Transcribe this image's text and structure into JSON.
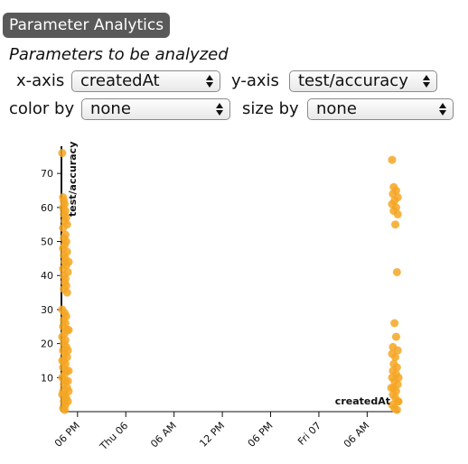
{
  "header": {
    "title": "Parameter Analytics"
  },
  "subtitle": "Parameters to be analyzed",
  "controls": {
    "xaxis_label": "x-axis",
    "xaxis_value": "createdAt",
    "yaxis_label": "y-axis",
    "yaxis_value": "test/accuracy",
    "colorby_label": "color by",
    "colorby_value": "none",
    "sizeby_label": "size by",
    "sizeby_value": "none"
  },
  "chart_data": {
    "type": "scatter",
    "color": "#f5a623",
    "ylabel": "test/accuracy",
    "xlabel": "createdAt",
    "ylim": [
      0,
      78
    ],
    "yticks": [
      10,
      20,
      30,
      40,
      50,
      60,
      70
    ],
    "xlim": [
      0,
      42
    ],
    "xticks": [
      {
        "x": 2,
        "label": "06 PM"
      },
      {
        "x": 8,
        "label": "Thu 06"
      },
      {
        "x": 14,
        "label": "06 AM"
      },
      {
        "x": 20,
        "label": "12 PM"
      },
      {
        "x": 26,
        "label": "06 PM"
      },
      {
        "x": 32,
        "label": "Fri 07"
      },
      {
        "x": 38,
        "label": "06 AM"
      }
    ],
    "series": [
      {
        "points": [
          [
            0.1,
            76
          ],
          [
            0.2,
            63
          ],
          [
            0.3,
            62
          ],
          [
            0.4,
            61
          ],
          [
            0.2,
            60
          ],
          [
            0.5,
            59
          ],
          [
            0.3,
            58
          ],
          [
            0.6,
            57
          ],
          [
            0.4,
            56
          ],
          [
            0.7,
            55
          ],
          [
            0.2,
            54
          ],
          [
            0.5,
            52
          ],
          [
            0.3,
            51
          ],
          [
            0.6,
            50
          ],
          [
            0.4,
            49
          ],
          [
            0.2,
            48
          ],
          [
            0.7,
            47
          ],
          [
            0.3,
            46
          ],
          [
            0.5,
            45
          ],
          [
            0.4,
            44
          ],
          [
            0.6,
            43
          ],
          [
            0.2,
            42
          ],
          [
            0.8,
            41
          ],
          [
            0.3,
            40
          ],
          [
            0.5,
            39
          ],
          [
            0.4,
            38
          ],
          [
            0.6,
            37
          ],
          [
            0.3,
            36
          ],
          [
            0.7,
            35
          ],
          [
            0.4,
            29
          ],
          [
            0.6,
            28
          ],
          [
            0.3,
            27
          ],
          [
            0.5,
            26
          ],
          [
            0.2,
            25
          ],
          [
            0.7,
            24
          ],
          [
            0.4,
            23
          ],
          [
            0.1,
            22
          ],
          [
            0.5,
            21
          ],
          [
            0.3,
            20
          ],
          [
            0.6,
            19
          ],
          [
            0.2,
            18
          ],
          [
            0.4,
            17
          ],
          [
            0.7,
            16
          ],
          [
            0.3,
            15
          ],
          [
            0.5,
            14
          ],
          [
            0.2,
            13
          ],
          [
            0.6,
            12
          ],
          [
            0.4,
            11
          ],
          [
            0.1,
            10
          ],
          [
            0.5,
            9
          ],
          [
            0.3,
            8
          ],
          [
            0.7,
            7
          ],
          [
            0.2,
            6
          ],
          [
            0.4,
            5
          ],
          [
            0.6,
            4
          ],
          [
            0.3,
            3
          ],
          [
            0.5,
            2
          ],
          [
            0.2,
            1
          ],
          [
            0.4,
            0.5
          ],
          [
            0.8,
            18
          ],
          [
            0.9,
            12
          ],
          [
            0.8,
            9
          ],
          [
            0.9,
            6
          ],
          [
            0.8,
            3
          ],
          [
            0.1,
            15
          ],
          [
            0.1,
            5
          ],
          [
            0.9,
            24
          ],
          [
            0.1,
            30
          ],
          [
            0.9,
            44
          ]
        ]
      },
      {
        "points": [
          [
            41.1,
            74
          ],
          [
            41.3,
            66
          ],
          [
            41.6,
            65
          ],
          [
            41.2,
            64
          ],
          [
            41.8,
            63
          ],
          [
            41.4,
            62
          ],
          [
            41.1,
            61
          ],
          [
            41.6,
            60
          ],
          [
            41.3,
            59
          ],
          [
            41.8,
            58
          ],
          [
            41.5,
            55
          ],
          [
            41.7,
            41
          ],
          [
            41.4,
            26
          ],
          [
            41.6,
            22
          ],
          [
            41.2,
            19
          ],
          [
            41.8,
            18
          ],
          [
            41.1,
            17
          ],
          [
            41.5,
            16
          ],
          [
            41.3,
            14
          ],
          [
            41.7,
            13
          ],
          [
            41.2,
            12
          ],
          [
            41.6,
            11
          ],
          [
            41.1,
            10
          ],
          [
            41.4,
            9
          ],
          [
            41.8,
            8
          ],
          [
            41.3,
            7
          ],
          [
            41.6,
            6
          ],
          [
            41.2,
            5
          ],
          [
            41.5,
            4
          ],
          [
            41.8,
            3
          ],
          [
            41.1,
            2
          ],
          [
            41.4,
            1
          ],
          [
            41.7,
            0.5
          ],
          [
            41.9,
            10
          ],
          [
            41.0,
            7
          ],
          [
            41.9,
            3
          ]
        ]
      }
    ]
  }
}
